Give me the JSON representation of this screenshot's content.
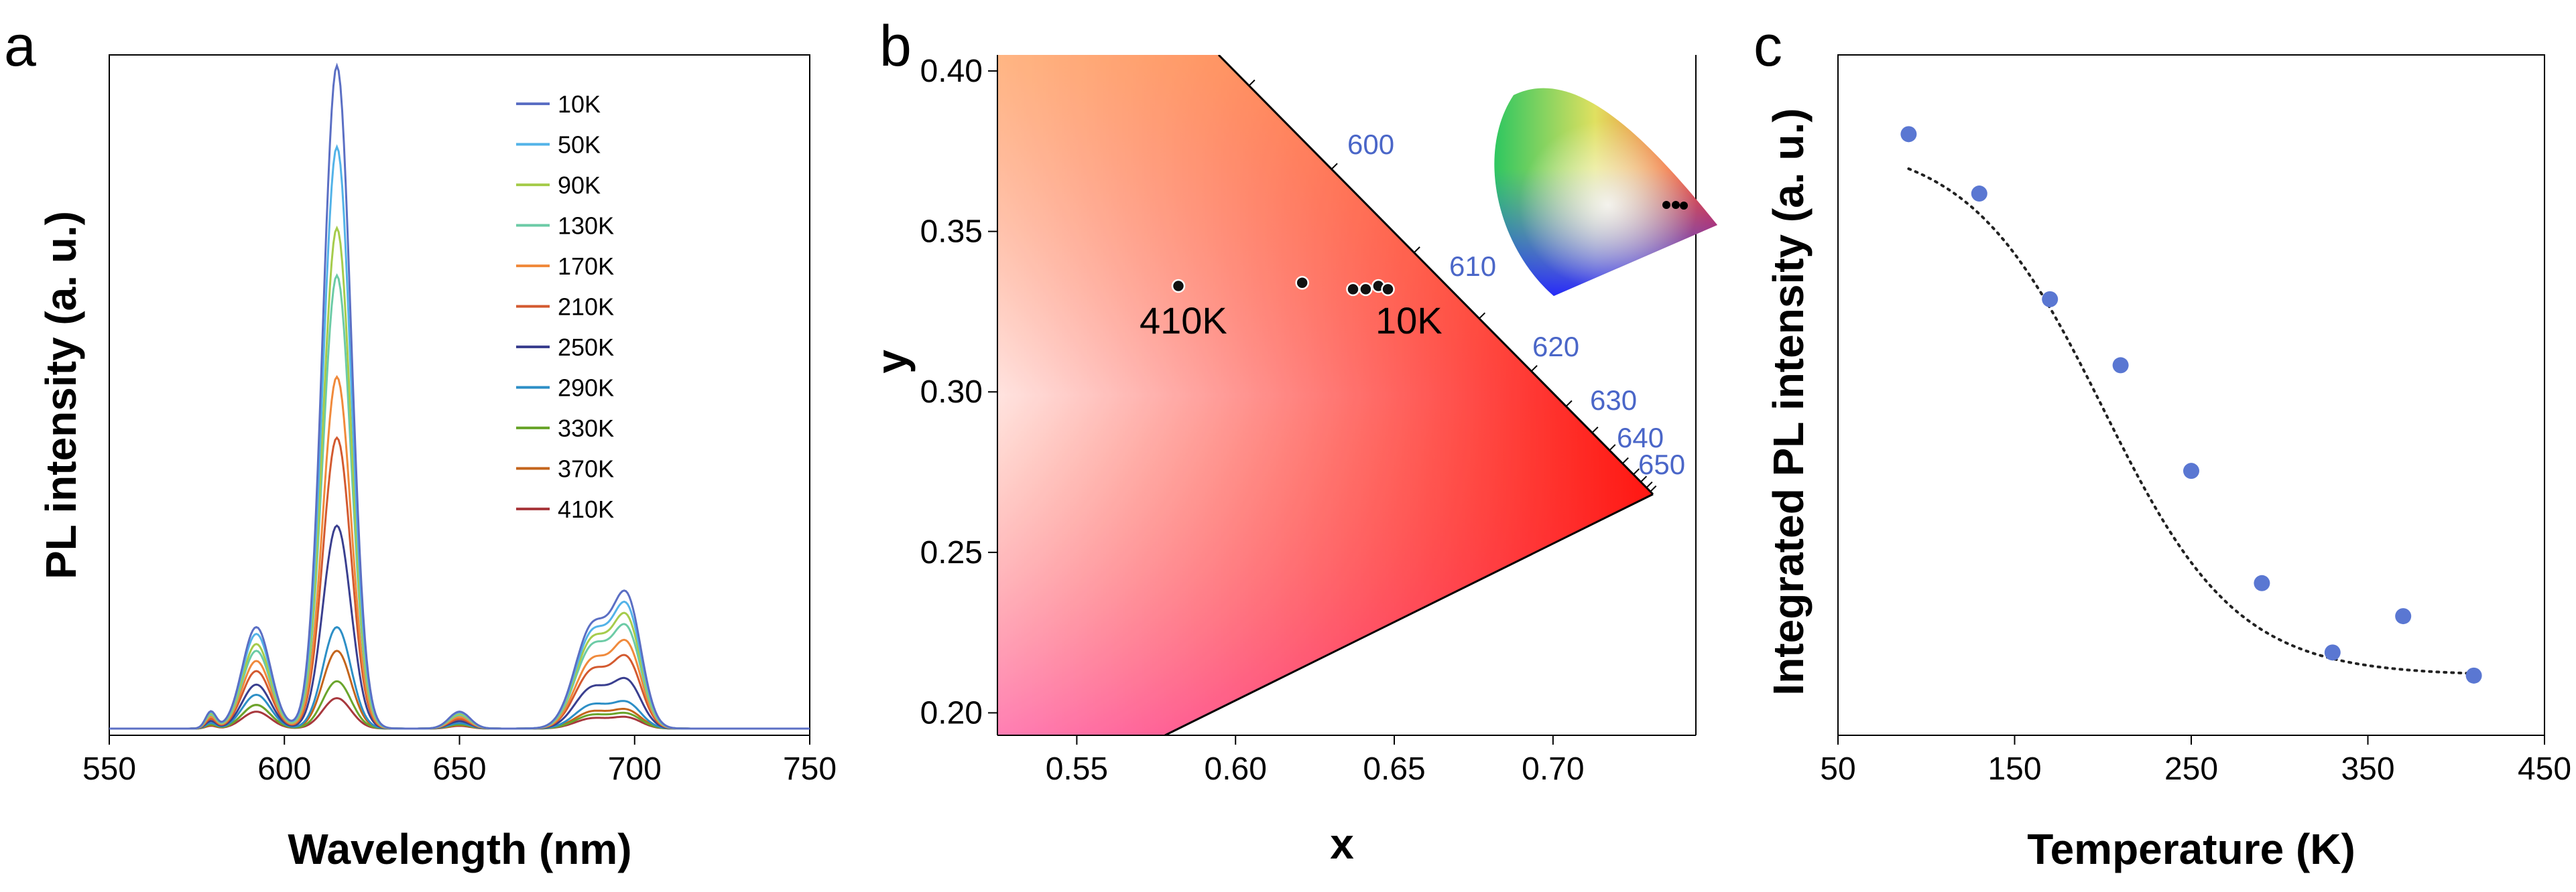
{
  "chart_data": [
    {
      "panel": "a",
      "type": "line",
      "title": "",
      "xlabel": "Wavelength (nm)",
      "ylabel": "PL intensity (a. u.)",
      "xlim": [
        550,
        750
      ],
      "ylim": [
        0,
        1.0
      ],
      "x_ticks": [
        "550",
        "600",
        "650",
        "700",
        "750"
      ],
      "show_y_ticks": false,
      "legend_position": "top-right",
      "peaks_nm": [
        579,
        592,
        615,
        650,
        688,
        698
      ],
      "peak_widths_nm": [
        1.5,
        4,
        4,
        3,
        5,
        4
      ],
      "series": [
        {
          "name": "10K",
          "color": "#5b6fc4",
          "peak_amplitudes": [
            0.025,
            0.15,
            0.98,
            0.025,
            0.15,
            0.18
          ]
        },
        {
          "name": "50K",
          "color": "#53b3e8",
          "peak_amplitudes": [
            0.024,
            0.14,
            0.86,
            0.024,
            0.14,
            0.165
          ]
        },
        {
          "name": "90K",
          "color": "#a6cc4c",
          "peak_amplitudes": [
            0.022,
            0.125,
            0.74,
            0.022,
            0.13,
            0.15
          ]
        },
        {
          "name": "130K",
          "color": "#6ccba6",
          "peak_amplitudes": [
            0.02,
            0.115,
            0.67,
            0.02,
            0.12,
            0.135
          ]
        },
        {
          "name": "170K",
          "color": "#f08a3c",
          "peak_amplitudes": [
            0.017,
            0.1,
            0.52,
            0.017,
            0.1,
            0.115
          ]
        },
        {
          "name": "210K",
          "color": "#d35a30",
          "peak_amplitudes": [
            0.014,
            0.085,
            0.43,
            0.014,
            0.085,
            0.095
          ]
        },
        {
          "name": "250K",
          "color": "#3a3f8f",
          "peak_amplitudes": [
            0.011,
            0.065,
            0.3,
            0.011,
            0.06,
            0.065
          ]
        },
        {
          "name": "290K",
          "color": "#2d8fc6",
          "peak_amplitudes": [
            0.008,
            0.05,
            0.15,
            0.008,
            0.035,
            0.035
          ]
        },
        {
          "name": "330K",
          "color": "#6aa52c",
          "peak_amplitudes": [
            0.006,
            0.035,
            0.07,
            0.006,
            0.02,
            0.02
          ]
        },
        {
          "name": "370K",
          "color": "#c4651c",
          "peak_amplitudes": [
            0.005,
            0.035,
            0.115,
            0.005,
            0.025,
            0.025
          ]
        },
        {
          "name": "410K",
          "color": "#a8383d",
          "peak_amplitudes": [
            0.004,
            0.025,
            0.045,
            0.004,
            0.015,
            0.015
          ]
        }
      ]
    },
    {
      "panel": "b",
      "type": "scatter",
      "title": "",
      "xlabel": "x",
      "ylabel": "y",
      "xlim": [
        0.525,
        0.745
      ],
      "ylim": [
        0.193,
        0.405
      ],
      "x_ticks": [
        "0.55",
        "0.60",
        "0.65",
        "0.70"
      ],
      "y_ticks": [
        "0.20",
        "0.25",
        "0.30",
        "0.35",
        "0.40"
      ],
      "points": [
        {
          "x": 0.582,
          "y": 0.333
        },
        {
          "x": 0.621,
          "y": 0.334
        },
        {
          "x": 0.637,
          "y": 0.332
        },
        {
          "x": 0.641,
          "y": 0.332
        },
        {
          "x": 0.645,
          "y": 0.333
        },
        {
          "x": 0.648,
          "y": 0.332
        }
      ],
      "point_annotations": [
        {
          "text": "410K",
          "x": 0.575,
          "y": 0.321
        },
        {
          "text": "10K",
          "x": 0.646,
          "y": 0.321
        }
      ],
      "spectral_locus_labels": [
        "600",
        "610",
        "620",
        "630",
        "640",
        "650"
      ],
      "inset": "CIE 1931 chromaticity diagram with data points marked near the red corner"
    },
    {
      "panel": "c",
      "type": "scatter",
      "title": "",
      "xlabel": "Temperature (K)",
      "ylabel": "Integrated PL intensity (a. u.)",
      "xlim": [
        50,
        450
      ],
      "ylim": [
        0,
        1.0
      ],
      "x_ticks": [
        "50",
        "150",
        "250",
        "350",
        "450"
      ],
      "show_y_ticks": false,
      "point_color": "#5a77d2",
      "points": [
        {
          "x": 90,
          "y": 0.88
        },
        {
          "x": 130,
          "y": 0.79
        },
        {
          "x": 170,
          "y": 0.63
        },
        {
          "x": 210,
          "y": 0.53
        },
        {
          "x": 250,
          "y": 0.37
        },
        {
          "x": 290,
          "y": 0.2
        },
        {
          "x": 330,
          "y": 0.095
        },
        {
          "x": 370,
          "y": 0.15
        },
        {
          "x": 410,
          "y": 0.06
        }
      ],
      "fit": {
        "style": "dotted",
        "model": "thermal quenching sigmoid",
        "x_range": [
          90,
          410
        ],
        "top": 0.87,
        "bottom": 0.06,
        "t_half": 200,
        "width": 38
      }
    }
  ]
}
